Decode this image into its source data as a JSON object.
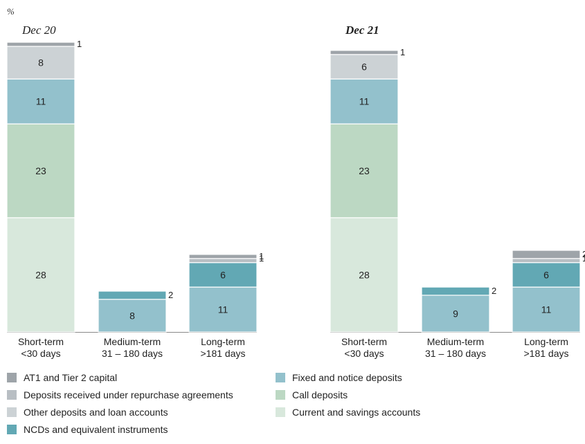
{
  "chart_data": {
    "type": "bar",
    "stacked": true,
    "unit_label": "%",
    "categories_lines": [
      [
        "Short-term",
        "<30 days"
      ],
      [
        "Medium-term",
        "31 – 180 days"
      ],
      [
        "Long-term",
        ">181 days"
      ]
    ],
    "series_colors": {
      "AT1 and Tier 2 capital": "#9ea4a9",
      "Deposits received under repurchase agreements": "#b8bec3",
      "Other deposits and loan accounts": "#ccd2d5",
      "NCDs and equivalent instruments": "#62a8b4",
      "Fixed and notice deposits": "#93c1cc",
      "Call deposits": "#bcd8c3",
      "Current and savings accounts": "#d8e8dc"
    },
    "stack_order": [
      "Current and savings accounts",
      "Call deposits",
      "Fixed and notice deposits",
      "NCDs and equivalent instruments",
      "Other deposits and loan accounts",
      "Deposits received under repurchase agreements",
      "AT1 and Tier 2 capital"
    ],
    "panels": [
      {
        "title": "Dec 20",
        "bold": false,
        "bars": [
          {
            "category": "Short-term",
            "segments": [
              {
                "series": "Current and savings accounts",
                "value": 28
              },
              {
                "series": "Call deposits",
                "value": 23
              },
              {
                "series": "Fixed and notice deposits",
                "value": 11
              },
              {
                "series": "Other deposits and loan accounts",
                "value": 8
              },
              {
                "series": "AT1 and Tier 2 capital",
                "value": 1
              }
            ]
          },
          {
            "category": "Medium-term",
            "segments": [
              {
                "series": "Fixed and notice deposits",
                "value": 8
              },
              {
                "series": "NCDs and equivalent instruments",
                "value": 2
              }
            ]
          },
          {
            "category": "Long-term",
            "segments": [
              {
                "series": "Fixed and notice deposits",
                "value": 11
              },
              {
                "series": "NCDs and equivalent instruments",
                "value": 6
              },
              {
                "series": "Deposits received under repurchase agreements",
                "value": 1
              },
              {
                "series": "AT1 and Tier 2 capital",
                "value": 1
              }
            ]
          }
        ]
      },
      {
        "title": "Dec 21",
        "bold": true,
        "bars": [
          {
            "category": "Short-term",
            "segments": [
              {
                "series": "Current and savings accounts",
                "value": 28
              },
              {
                "series": "Call deposits",
                "value": 23
              },
              {
                "series": "Fixed and notice deposits",
                "value": 11
              },
              {
                "series": "Other deposits and loan accounts",
                "value": 6
              },
              {
                "series": "AT1 and Tier 2 capital",
                "value": 1
              }
            ]
          },
          {
            "category": "Medium-term",
            "segments": [
              {
                "series": "Fixed and notice deposits",
                "value": 9
              },
              {
                "series": "NCDs and equivalent instruments",
                "value": 2
              }
            ]
          },
          {
            "category": "Long-term",
            "segments": [
              {
                "series": "Fixed and notice deposits",
                "value": 11
              },
              {
                "series": "NCDs and equivalent instruments",
                "value": 6
              },
              {
                "series": "Deposits received under repurchase agreements",
                "value": 1
              },
              {
                "series": "AT1 and Tier 2 capital",
                "value": 2
              }
            ]
          }
        ]
      }
    ]
  },
  "legend": {
    "left": [
      "AT1 and Tier 2 capital",
      "Deposits received under repurchase agreements",
      "Other deposits and loan accounts",
      "NCDs and equivalent instruments"
    ],
    "right": [
      "Fixed and notice deposits",
      "Call deposits",
      "Current and savings accounts"
    ]
  }
}
